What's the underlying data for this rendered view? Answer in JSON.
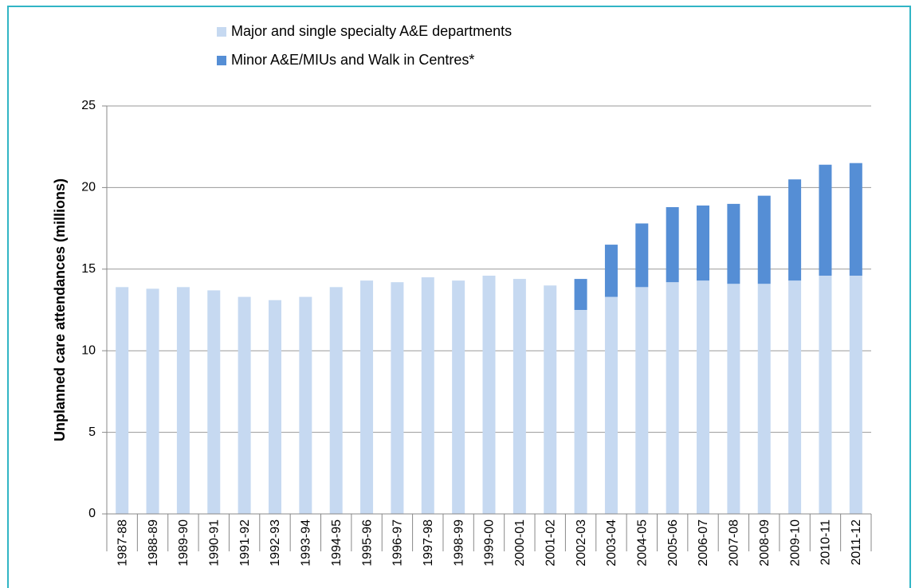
{
  "chart_data": {
    "type": "stacked-bar",
    "ylabel": "Unplanned care attendances (millions)",
    "categories": [
      "1987-88",
      "1988-89",
      "1989-90",
      "1990-91",
      "1991-92",
      "1992-93",
      "1993-94",
      "1994-95",
      "1995-96",
      "1996-97",
      "1997-98",
      "1998-99",
      "1999-00",
      "2000-01",
      "2001-02",
      "2002-03",
      "2003-04",
      "2004-05",
      "2005-06",
      "2006-07",
      "2007-08",
      "2008-09",
      "2009-10",
      "2010-11",
      "2011-12"
    ],
    "series": [
      {
        "name": "Major and single specialty A&E departments",
        "color": "#c6d9f1",
        "values": [
          13.9,
          13.8,
          13.9,
          13.7,
          13.3,
          13.1,
          13.3,
          13.9,
          14.3,
          14.2,
          14.5,
          14.3,
          14.6,
          14.4,
          14.0,
          12.5,
          13.3,
          13.9,
          14.2,
          14.3,
          14.1,
          14.1,
          14.3,
          14.6,
          14.6
        ]
      },
      {
        "name": "Minor A&E/MIUs and Walk in Centres*",
        "color": "#558ed5",
        "values": [
          null,
          null,
          null,
          null,
          null,
          null,
          null,
          null,
          null,
          null,
          null,
          null,
          null,
          null,
          null,
          1.9,
          3.2,
          3.9,
          4.6,
          4.6,
          4.9,
          5.4,
          6.2,
          6.8,
          6.9
        ]
      }
    ],
    "ylim": [
      0,
      25
    ],
    "yticks": [
      0,
      5,
      10,
      15,
      20,
      25
    ],
    "grid": true
  }
}
